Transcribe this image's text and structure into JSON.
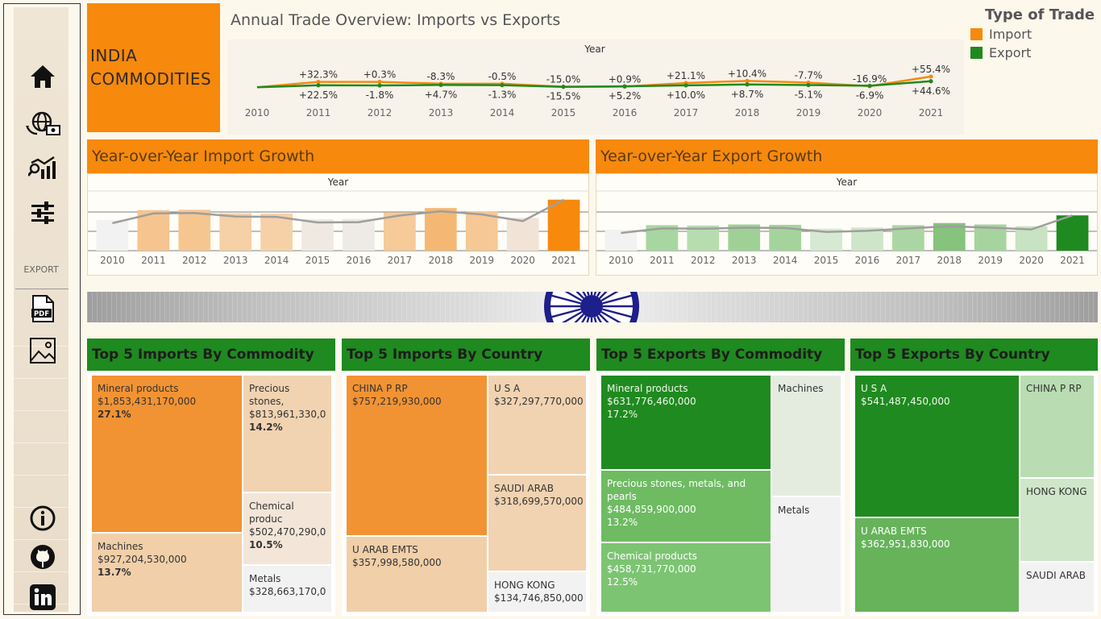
{
  "title": {
    "line1": "INDIA",
    "line2": "COMMODITIES"
  },
  "overview": {
    "title": "Annual Trade Overview: Imports vs Exports",
    "axis_label": "Year",
    "legend": {
      "title": "Type of Trade",
      "import": "Import",
      "export": "Export"
    }
  },
  "colors": {
    "import": "#f7890c",
    "export": "#1f8a1f",
    "trend": "#9e9e9e"
  },
  "sidebar": {
    "export_label": "EXPORT",
    "icons": [
      "home-icon",
      "global-trade-icon",
      "analytics-icon",
      "filter-sliders-icon",
      "pdf-icon",
      "image-icon",
      "info-icon",
      "github-icon",
      "linkedin-icon"
    ]
  },
  "yoy_import": {
    "title": "Year-over-Year Import Growth",
    "axis_label": "Year"
  },
  "yoy_export": {
    "title": "Year-over-Year Export Growth",
    "axis_label": "Year"
  },
  "chart_data": [
    {
      "type": "line",
      "title": "Annual Trade Overview: Imports vs Exports",
      "xlabel": "Year",
      "x": [
        "2010",
        "2011",
        "2012",
        "2013",
        "2014",
        "2015",
        "2016",
        "2017",
        "2018",
        "2019",
        "2020",
        "2021"
      ],
      "series": [
        {
          "name": "Import",
          "labels": [
            "",
            "+32.3%",
            "+0.3%",
            "-8.3%",
            "-0.5%",
            "-15.0%",
            "+0.9%",
            "+21.1%",
            "+10.4%",
            "-7.7%",
            "-16.9%",
            "+55.4%"
          ],
          "values": [
            0,
            32.3,
            0.3,
            -8.3,
            -0.5,
            -15.0,
            0.9,
            21.1,
            10.4,
            -7.7,
            -16.9,
            55.4
          ]
        },
        {
          "name": "Export",
          "labels": [
            "",
            "+22.5%",
            "-1.8%",
            "+4.7%",
            "-1.3%",
            "-15.5%",
            "+5.2%",
            "+10.0%",
            "+8.7%",
            "-5.1%",
            "-6.9%",
            "+44.6%"
          ],
          "values": [
            0,
            22.5,
            -1.8,
            4.7,
            -1.3,
            -15.5,
            5.2,
            10.0,
            8.7,
            -5.1,
            -6.9,
            44.6
          ]
        }
      ]
    },
    {
      "type": "bar",
      "title": "Year-over-Year Import Growth",
      "xlabel": "Year",
      "categories": [
        "2010",
        "2011",
        "2012",
        "2013",
        "2014",
        "2015",
        "2016",
        "2017",
        "2018",
        "2019",
        "2020",
        "2021"
      ],
      "values": [
        0.88,
        1.16,
        1.17,
        1.07,
        1.06,
        0.9,
        0.91,
        1.1,
        1.22,
        1.13,
        0.94,
        1.46
      ],
      "trend_line": true
    },
    {
      "type": "bar",
      "title": "Year-over-Year Export Growth",
      "xlabel": "Year",
      "categories": [
        "2010",
        "2011",
        "2012",
        "2013",
        "2014",
        "2015",
        "2016",
        "2017",
        "2018",
        "2019",
        "2020",
        "2021"
      ],
      "values": [
        0.6,
        0.73,
        0.72,
        0.75,
        0.74,
        0.63,
        0.66,
        0.73,
        0.79,
        0.75,
        0.7,
        1.01
      ],
      "trend_line": true
    },
    {
      "type": "treemap",
      "title": "Top 5 Imports By Commodity",
      "items": [
        {
          "name": "Mineral products",
          "value": "$1,853,431,170,000",
          "pct": "27.1%"
        },
        {
          "name": "Precious stones,",
          "value": "$813,961,330,0",
          "pct": "14.2%"
        },
        {
          "name": "Chemical produc",
          "value": "$502,470,290,0",
          "pct": "10.5%"
        },
        {
          "name": "Machines",
          "value": "$927,204,530,000",
          "pct": "13.7%"
        },
        {
          "name": "Metals",
          "value": "$328,663,170,0",
          "pct": ""
        }
      ]
    },
    {
      "type": "treemap",
      "title": "Top 5 Imports By Country",
      "items": [
        {
          "name": "CHINA P RP",
          "value": "$757,219,930,000"
        },
        {
          "name": "U S A",
          "value": "$327,297,770,000"
        },
        {
          "name": "SAUDI ARAB",
          "value": "$318,699,570,000"
        },
        {
          "name": "U ARAB EMTS",
          "value": "$357,998,580,000"
        },
        {
          "name": "HONG KONG",
          "value": "$134,746,850,000"
        }
      ]
    },
    {
      "type": "treemap",
      "title": "Top 5 Exports By Commodity",
      "items": [
        {
          "name": "Mineral products",
          "value": "$631,776,460,000",
          "pct": "17.2%"
        },
        {
          "name": "Precious stones, metals, and pearls",
          "value": "$484,859,900,000",
          "pct": "13.2%"
        },
        {
          "name": "Chemical products",
          "value": "$458,731,770,000",
          "pct": "12.5%"
        },
        {
          "name": "Machines",
          "value": "",
          "pct": ""
        },
        {
          "name": "Metals",
          "value": "",
          "pct": ""
        }
      ]
    },
    {
      "type": "treemap",
      "title": "Top 5 Exports By Country",
      "items": [
        {
          "name": "U S A",
          "value": "$541,487,450,000"
        },
        {
          "name": "U ARAB EMTS",
          "value": "$362,951,830,000"
        },
        {
          "name": "CHINA P RP",
          "value": ""
        },
        {
          "name": "HONG KONG",
          "value": ""
        },
        {
          "name": "SAUDI ARAB",
          "value": ""
        }
      ]
    }
  ]
}
